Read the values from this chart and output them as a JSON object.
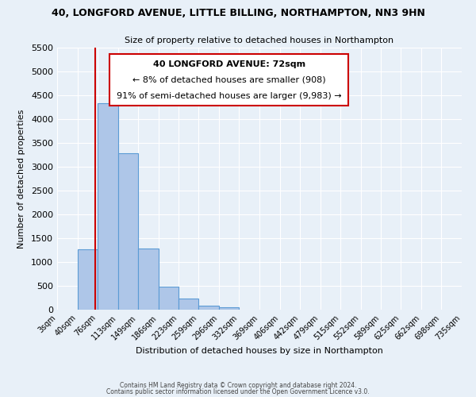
{
  "title": "40, LONGFORD AVENUE, LITTLE BILLING, NORTHAMPTON, NN3 9HN",
  "subtitle": "Size of property relative to detached houses in Northampton",
  "xlabel": "Distribution of detached houses by size in Northampton",
  "ylabel": "Number of detached properties",
  "bin_edges": [
    3,
    40,
    76,
    113,
    149,
    186,
    223,
    259,
    296,
    332,
    369,
    406,
    442,
    479,
    515,
    552,
    589,
    625,
    662,
    698,
    735
  ],
  "bar_heights": [
    0,
    1270,
    4330,
    3290,
    1290,
    480,
    230,
    80,
    50,
    0,
    0,
    0,
    0,
    0,
    0,
    0,
    0,
    0,
    0,
    0
  ],
  "bar_color": "#aec6e8",
  "bar_edge_color": "#5b9bd5",
  "vline_x": 72,
  "vline_color": "#cc0000",
  "ylim": [
    0,
    5500
  ],
  "yticks": [
    0,
    500,
    1000,
    1500,
    2000,
    2500,
    3000,
    3500,
    4000,
    4500,
    5000,
    5500
  ],
  "annotation_title": "40 LONGFORD AVENUE: 72sqm",
  "annotation_line1": "← 8% of detached houses are smaller (908)",
  "annotation_line2": "91% of semi-detached houses are larger (9,983) →",
  "footer1": "Contains HM Land Registry data © Crown copyright and database right 2024.",
  "footer2": "Contains public sector information licensed under the Open Government Licence v3.0.",
  "background_color": "#e8f0f8",
  "plot_bg_color": "#e8f0f8"
}
